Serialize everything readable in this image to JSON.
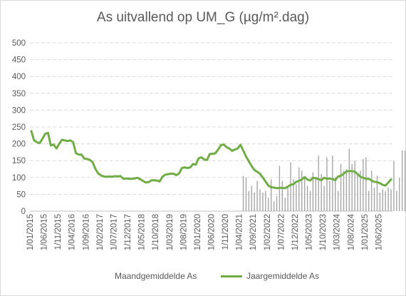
{
  "chart_data": {
    "type": "bar+line",
    "title": "As uitvallend op UM_G (µg/m².dag)",
    "ylim": [
      0,
      500
    ],
    "yticks": [
      0,
      50,
      100,
      150,
      200,
      250,
      300,
      350,
      400,
      450,
      500
    ],
    "x_start": "2015-01",
    "x_end": "2025-10",
    "x_tick_labels": [
      "1/01/2015",
      "1/06/2015",
      "1/11/2015",
      "1/04/2016",
      "1/09/2016",
      "1/02/2017",
      "1/07/2017",
      "1/12/2017",
      "1/05/2018",
      "1/10/2018",
      "1/03/2019",
      "1/08/2019",
      "1/01/2020",
      "1/06/2020",
      "1/11/2020",
      "1/04/2021",
      "1/09/2021",
      "1/02/2022",
      "1/07/2022",
      "1/12/2022",
      "1/05/2023",
      "1/10/2023",
      "1/03/2024",
      "1/08/2024",
      "1/01/2025",
      "1/06/2025"
    ],
    "grid": true,
    "legend_position": "bottom",
    "series": [
      {
        "name": "Maandgemiddelde As",
        "kind": "bar",
        "color": "#a6a6a6",
        "start": "2021-05",
        "values": [
          105,
          100,
          60,
          75,
          55,
          90,
          65,
          55,
          60,
          40,
          95,
          30,
          45,
          135,
          90,
          40,
          70,
          145,
          95,
          80,
          130,
          120,
          100,
          75,
          60,
          115,
          100,
          165,
          110,
          75,
          160,
          90,
          165,
          100,
          60,
          140,
          120,
          125,
          185,
          140,
          150,
          110,
          120,
          155,
          160,
          60,
          120,
          70,
          105,
          55,
          65,
          60,
          70,
          65,
          150,
          60,
          100,
          180,
          180
        ]
      },
      {
        "name": "Jaargemiddelde As",
        "kind": "line",
        "color": "#70ad47",
        "x": [
          "2015-01",
          "2015-02",
          "2015-03",
          "2015-04",
          "2015-05",
          "2015-06",
          "2015-07",
          "2015-08",
          "2015-09",
          "2015-10",
          "2015-11",
          "2015-12",
          "2016-01",
          "2016-02",
          "2016-03",
          "2016-04",
          "2016-05",
          "2016-06",
          "2016-07",
          "2016-08",
          "2016-09",
          "2016-10",
          "2016-11",
          "2016-12",
          "2017-01",
          "2017-02",
          "2017-03",
          "2017-04",
          "2017-05",
          "2017-06",
          "2017-07",
          "2017-08",
          "2017-09",
          "2017-10",
          "2017-11",
          "2017-12",
          "2018-01",
          "2018-02",
          "2018-03",
          "2018-04",
          "2018-05",
          "2018-06",
          "2018-07",
          "2018-08",
          "2018-09",
          "2018-10",
          "2018-11",
          "2018-12",
          "2019-01",
          "2019-02",
          "2019-03",
          "2019-04",
          "2019-05",
          "2019-06",
          "2019-07",
          "2019-08",
          "2019-09",
          "2019-10",
          "2019-11",
          "2019-12",
          "2020-01",
          "2020-02",
          "2020-03",
          "2020-04",
          "2020-05",
          "2020-06",
          "2020-07",
          "2020-08",
          "2020-09",
          "2020-10",
          "2020-11",
          "2020-12",
          "2021-01",
          "2021-02",
          "2021-03",
          "2021-04",
          "2021-05",
          "2021-06",
          "2021-07",
          "2021-08",
          "2021-09",
          "2021-10",
          "2021-11",
          "2021-12",
          "2022-01",
          "2022-02",
          "2022-03",
          "2022-04",
          "2022-05",
          "2022-06",
          "2022-07",
          "2022-08",
          "2022-09",
          "2022-10",
          "2022-11",
          "2022-12",
          "2023-01",
          "2023-02",
          "2023-03",
          "2023-04",
          "2023-05",
          "2023-06",
          "2023-07",
          "2023-08",
          "2023-09",
          "2023-10",
          "2023-11",
          "2023-12",
          "2024-01",
          "2024-02",
          "2024-03",
          "2024-04",
          "2024-05",
          "2024-06",
          "2024-07",
          "2024-08",
          "2024-09",
          "2024-10",
          "2024-11",
          "2024-12",
          "2025-01",
          "2025-02",
          "2025-03",
          "2025-04",
          "2025-05",
          "2025-06",
          "2025-07",
          "2025-08",
          "2025-09",
          "2025-10"
        ],
        "values": [
          238,
          210,
          205,
          202,
          215,
          230,
          232,
          195,
          198,
          186,
          200,
          212,
          210,
          208,
          210,
          205,
          172,
          168,
          168,
          156,
          155,
          152,
          145,
          125,
          112,
          106,
          103,
          102,
          103,
          102,
          104,
          103,
          104,
          96,
          97,
          96,
          96,
          97,
          99,
          95,
          90,
          85,
          86,
          91,
          92,
          91,
          88,
          102,
          108,
          110,
          111,
          111,
          107,
          112,
          128,
          130,
          128,
          130,
          140,
          138,
          157,
          160,
          153,
          152,
          170,
          170,
          172,
          183,
          196,
          198,
          190,
          186,
          179,
          183,
          186,
          197,
          180,
          162,
          148,
          134,
          122,
          117,
          111,
          100,
          88,
          76,
          71,
          70,
          68,
          69,
          69,
          68,
          73,
          78,
          80,
          87,
          90,
          94,
          101,
          94,
          91,
          99,
          98,
          95,
          92,
          99,
          96,
          97,
          95,
          92,
          103,
          105,
          111,
          118,
          119,
          119,
          117,
          110,
          102,
          99,
          96,
          96,
          91,
          87,
          86,
          83,
          78,
          76,
          85,
          94
        ]
      }
    ]
  }
}
